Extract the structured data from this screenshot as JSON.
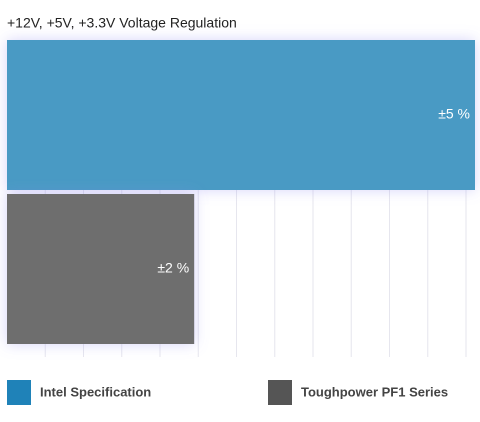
{
  "chart_data": {
    "type": "bar",
    "orientation": "horizontal",
    "title": "+12V, +5V, +3.3V Voltage Regulation",
    "categories": [
      "Intel Specification",
      "Toughpower PF1 Series"
    ],
    "values": [
      5,
      2
    ],
    "value_labels": [
      "±5 %",
      "±2 %"
    ],
    "colors": [
      "#4a9ac4",
      "#6e6e6e"
    ],
    "legend_colors": [
      "#1f82b8",
      "#555555"
    ],
    "xlim": [
      0,
      5
    ],
    "grid": true
  }
}
